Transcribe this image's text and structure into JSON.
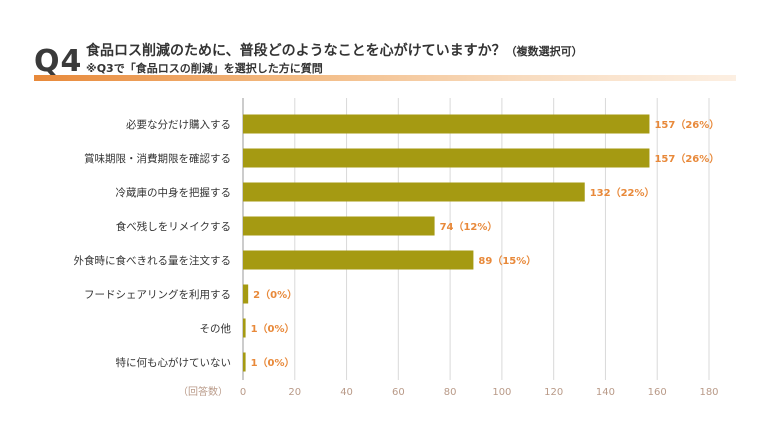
{
  "header": {
    "qnum": "Q4",
    "title": "食品ロス削減のために、普段どのようなことを心がけていますか？",
    "title_note": "（複数選択可）",
    "subtitle": "※Q3で「食品ロスの削減」を選択した方に質問"
  },
  "colors": {
    "bar": "#a59a12",
    "accent": "#e8893a",
    "grid": "#d9d9d9",
    "tick": "#b99a88"
  },
  "chart_data": {
    "type": "bar",
    "orientation": "horizontal",
    "categories": [
      "必要な分だけ購入する",
      "賞味期限・消費期限を確認する",
      "冷蔵庫の中身を把握する",
      "食べ残しをリメイクする",
      "外食時に食べきれる量を注文する",
      "フードシェアリングを利用する",
      "その他",
      "特に何も心がけていない"
    ],
    "values": [
      157,
      157,
      132,
      74,
      89,
      2,
      1,
      1
    ],
    "labels": [
      "157（26%）",
      "157（26%）",
      "132（22%）",
      "74（12%）",
      "89（15%）",
      "2（0%）",
      "1（0%）",
      "1（0%）"
    ],
    "xlabel": "（回答数）",
    "xlim": [
      0,
      180
    ],
    "xticks": [
      0,
      20,
      40,
      60,
      80,
      100,
      120,
      140,
      160,
      180
    ],
    "grid": true
  }
}
